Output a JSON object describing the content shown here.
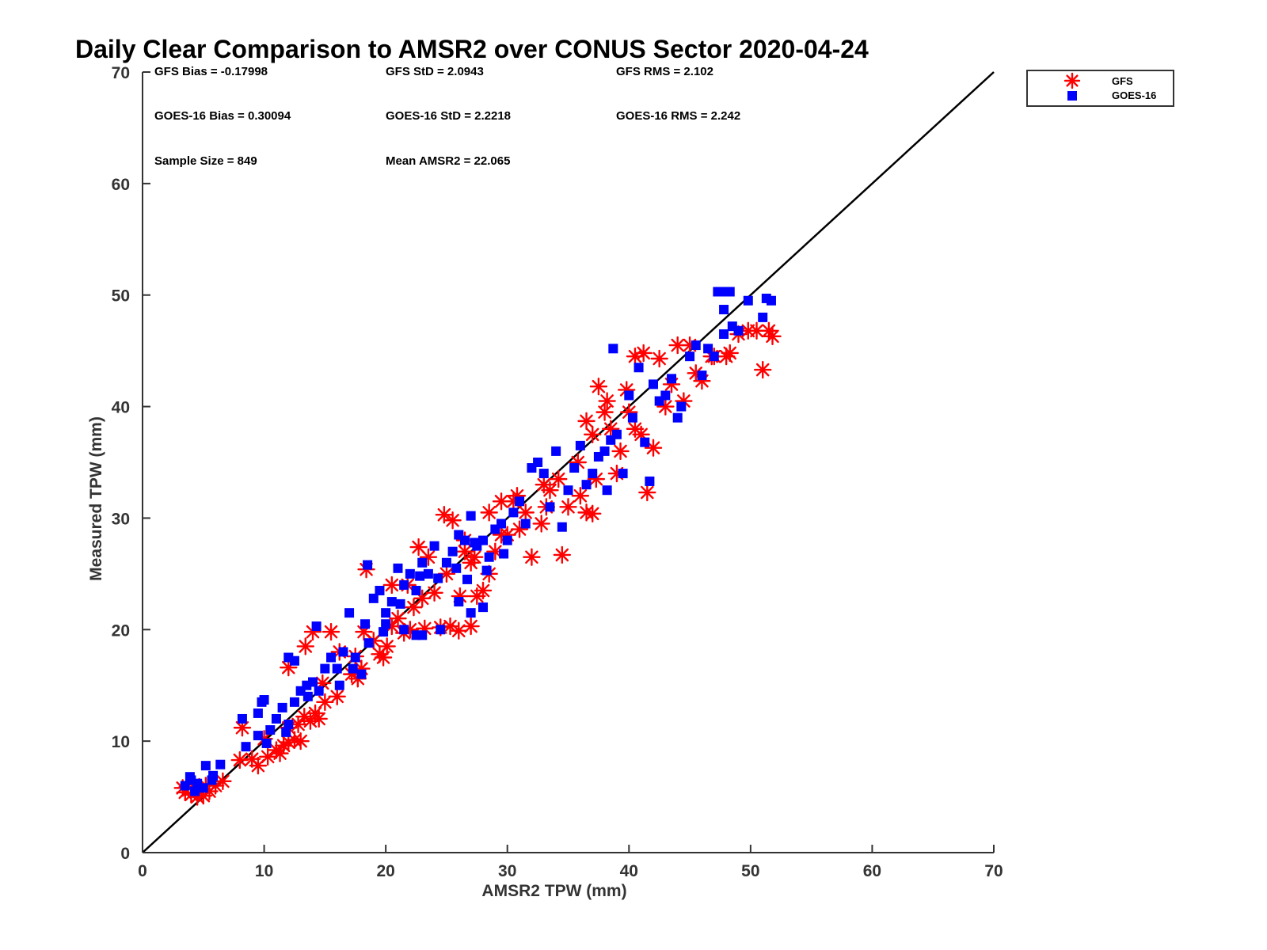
{
  "chart_data": {
    "type": "scatter",
    "title": "Daily Clear Comparison to AMSR2 over CONUS Sector 2020-04-24",
    "xlabel": "AMSR2 TPW (mm)",
    "ylabel": "Measured TPW (mm)",
    "xlim": [
      0,
      70
    ],
    "ylim": [
      0,
      70
    ],
    "xticks": [
      "0",
      "10",
      "20",
      "30",
      "40",
      "50",
      "60",
      "70"
    ],
    "yticks": [
      "0",
      "10",
      "20",
      "30",
      "40",
      "50",
      "60",
      "70"
    ],
    "reference_line": "1:1",
    "grid": false,
    "legend_position": "outside-top-right",
    "stats": [
      [
        "GFS Bias = -0.17998",
        "GFS StD = 2.0943",
        "GFS RMS = 2.102"
      ],
      [
        "GOES-16 Bias = 0.30094",
        "GOES-16 StD = 2.2218",
        "GOES-16 RMS = 2.242"
      ],
      [
        "Sample Size = 849",
        "Mean AMSR2 = 22.065"
      ]
    ],
    "series": [
      {
        "name": "GFS",
        "marker": "asterisk",
        "color": "#ff0000",
        "points": [
          [
            3.5,
            5.4
          ],
          [
            4.0,
            5.2
          ],
          [
            4.5,
            5.0
          ],
          [
            5.0,
            5.1
          ],
          [
            5.5,
            5.5
          ],
          [
            6.0,
            6.0
          ],
          [
            6.6,
            6.4
          ],
          [
            4.2,
            6.1
          ],
          [
            3.3,
            5.8
          ],
          [
            5.2,
            6.0
          ],
          [
            8.0,
            8.3
          ],
          [
            8.2,
            11.2
          ],
          [
            9.5,
            7.8
          ],
          [
            10.3,
            8.6
          ],
          [
            11.0,
            9.2
          ],
          [
            11.6,
            9.6
          ],
          [
            12.0,
            9.9
          ],
          [
            12.5,
            10.1
          ],
          [
            13.0,
            10.0
          ],
          [
            11.3,
            8.9
          ],
          [
            12.0,
            16.6
          ],
          [
            13.4,
            18.5
          ],
          [
            14.0,
            19.8
          ],
          [
            13.3,
            12.2
          ],
          [
            14.2,
            12.5
          ],
          [
            14.5,
            12.0
          ],
          [
            12.8,
            11.5
          ],
          [
            12.0,
            11.2
          ],
          [
            13.8,
            11.8
          ],
          [
            15.5,
            19.8
          ],
          [
            16.2,
            18.0
          ],
          [
            17.5,
            17.6
          ],
          [
            18.0,
            16.5
          ],
          [
            18.2,
            19.8
          ],
          [
            19.0,
            19.0
          ],
          [
            17.7,
            15.6
          ],
          [
            19.5,
            17.8
          ],
          [
            20.1,
            18.5
          ],
          [
            18.4,
            25.4
          ],
          [
            20.5,
            20.3
          ],
          [
            21.5,
            19.7
          ],
          [
            22.0,
            20.0
          ],
          [
            23.2,
            20.1
          ],
          [
            24.0,
            23.3
          ],
          [
            24.5,
            20.2
          ],
          [
            25.3,
            20.3
          ],
          [
            26.0,
            19.9
          ],
          [
            27.0,
            20.3
          ],
          [
            22.7,
            27.4
          ],
          [
            23.5,
            26.5
          ],
          [
            24.8,
            30.3
          ],
          [
            25.5,
            29.8
          ],
          [
            26.5,
            28.0
          ],
          [
            27.3,
            26.5
          ],
          [
            27.5,
            23.0
          ],
          [
            28.0,
            23.5
          ],
          [
            26.1,
            23.0
          ],
          [
            21.8,
            24.0
          ],
          [
            23.0,
            22.8
          ],
          [
            28.5,
            25.0
          ],
          [
            29.0,
            27.0
          ],
          [
            30.0,
            28.5
          ],
          [
            31.5,
            30.5
          ],
          [
            32.0,
            26.5
          ],
          [
            32.8,
            29.5
          ],
          [
            33.2,
            31.0
          ],
          [
            34.5,
            26.7
          ],
          [
            29.5,
            31.5
          ],
          [
            30.8,
            32.0
          ],
          [
            33.5,
            32.5
          ],
          [
            34.2,
            33.5
          ],
          [
            35.0,
            31.0
          ],
          [
            36.0,
            32.0
          ],
          [
            36.5,
            30.5
          ],
          [
            37.0,
            30.4
          ],
          [
            37.3,
            33.5
          ],
          [
            37.0,
            37.5
          ],
          [
            36.5,
            38.7
          ],
          [
            35.8,
            35.0
          ],
          [
            37.5,
            41.8
          ],
          [
            38.2,
            40.5
          ],
          [
            38.5,
            38.0
          ],
          [
            39.0,
            34.0
          ],
          [
            39.3,
            36.0
          ],
          [
            40.0,
            39.5
          ],
          [
            40.5,
            38.0
          ],
          [
            41.0,
            37.5
          ],
          [
            41.5,
            32.3
          ],
          [
            42.0,
            36.3
          ],
          [
            40.5,
            44.5
          ],
          [
            41.2,
            44.8
          ],
          [
            42.5,
            44.3
          ],
          [
            43.0,
            40.0
          ],
          [
            43.5,
            42.0
          ],
          [
            44.5,
            40.5
          ],
          [
            44.0,
            45.5
          ],
          [
            45.0,
            45.5
          ],
          [
            45.5,
            43.0
          ],
          [
            46.0,
            42.3
          ],
          [
            47.0,
            44.5
          ],
          [
            48.0,
            44.5
          ],
          [
            48.3,
            44.8
          ],
          [
            49.8,
            46.8
          ],
          [
            50.5,
            46.8
          ],
          [
            51.0,
            43.3
          ],
          [
            51.5,
            46.8
          ],
          [
            51.8,
            46.3
          ],
          [
            46.8,
            44.5
          ],
          [
            49.0,
            46.5
          ],
          [
            16.0,
            14.0
          ],
          [
            17.2,
            16.0
          ],
          [
            19.8,
            17.5
          ],
          [
            21.0,
            21.0
          ],
          [
            22.3,
            22.0
          ],
          [
            25.0,
            25.0
          ],
          [
            27.0,
            26.0
          ],
          [
            29.5,
            28.5
          ],
          [
            31.0,
            29.0
          ],
          [
            33.0,
            33.0
          ],
          [
            14.8,
            15.2
          ],
          [
            15.0,
            13.5
          ],
          [
            9.0,
            8.4
          ],
          [
            10.0,
            10.2
          ],
          [
            20.5,
            24.0
          ],
          [
            26.5,
            27.0
          ],
          [
            28.5,
            30.5
          ],
          [
            30.5,
            31.5
          ],
          [
            38.0,
            39.5
          ],
          [
            39.8,
            41.5
          ]
        ]
      },
      {
        "name": "GOES-16",
        "marker": "square",
        "color": "#0000ff",
        "points": [
          [
            3.5,
            6.0
          ],
          [
            4.0,
            6.5
          ],
          [
            4.5,
            6.2
          ],
          [
            5.0,
            5.8
          ],
          [
            5.2,
            7.8
          ],
          [
            5.7,
            6.5
          ],
          [
            6.4,
            7.9
          ],
          [
            4.3,
            5.5
          ],
          [
            3.9,
            6.8
          ],
          [
            5.8,
            6.9
          ],
          [
            8.2,
            12.0
          ],
          [
            8.5,
            9.5
          ],
          [
            9.5,
            12.5
          ],
          [
            9.8,
            13.5
          ],
          [
            10.0,
            13.7
          ],
          [
            10.5,
            11.0
          ],
          [
            11.0,
            12.0
          ],
          [
            11.5,
            13.0
          ],
          [
            12.0,
            11.5
          ],
          [
            12.5,
            13.5
          ],
          [
            9.5,
            10.5
          ],
          [
            10.2,
            9.8
          ],
          [
            11.8,
            10.8
          ],
          [
            13.0,
            14.5
          ],
          [
            13.5,
            15.0
          ],
          [
            14.0,
            15.3
          ],
          [
            14.5,
            14.5
          ],
          [
            13.6,
            14.0
          ],
          [
            12.0,
            17.5
          ],
          [
            12.5,
            17.2
          ],
          [
            14.3,
            20.3
          ],
          [
            15.5,
            17.5
          ],
          [
            16.0,
            16.5
          ],
          [
            16.5,
            18.0
          ],
          [
            17.0,
            21.5
          ],
          [
            17.3,
            16.5
          ],
          [
            18.0,
            16.0
          ],
          [
            18.3,
            20.5
          ],
          [
            18.5,
            25.8
          ],
          [
            19.0,
            22.8
          ],
          [
            19.5,
            23.5
          ],
          [
            20.0,
            21.5
          ],
          [
            20.5,
            22.5
          ],
          [
            21.0,
            25.5
          ],
          [
            21.5,
            24.0
          ],
          [
            22.0,
            25.0
          ],
          [
            22.5,
            23.5
          ],
          [
            23.0,
            26.0
          ],
          [
            23.5,
            25.0
          ],
          [
            24.5,
            20.0
          ],
          [
            24.0,
            27.5
          ],
          [
            25.0,
            26.0
          ],
          [
            25.5,
            27.0
          ],
          [
            26.0,
            28.5
          ],
          [
            26.5,
            28.0
          ],
          [
            27.0,
            30.2
          ],
          [
            27.5,
            27.5
          ],
          [
            28.0,
            28.0
          ],
          [
            28.5,
            26.5
          ],
          [
            29.0,
            29.0
          ],
          [
            29.5,
            29.5
          ],
          [
            30.0,
            28.0
          ],
          [
            30.5,
            30.5
          ],
          [
            31.0,
            31.5
          ],
          [
            31.5,
            29.5
          ],
          [
            32.0,
            34.5
          ],
          [
            32.5,
            35.0
          ],
          [
            33.0,
            34.0
          ],
          [
            33.5,
            31.0
          ],
          [
            34.0,
            36.0
          ],
          [
            34.5,
            29.2
          ],
          [
            35.0,
            32.5
          ],
          [
            35.5,
            34.5
          ],
          [
            36.0,
            36.5
          ],
          [
            36.5,
            33.0
          ],
          [
            37.0,
            34.0
          ],
          [
            37.5,
            35.5
          ],
          [
            38.0,
            36.0
          ],
          [
            38.2,
            32.5
          ],
          [
            38.5,
            37.0
          ],
          [
            38.7,
            45.2
          ],
          [
            39.0,
            37.5
          ],
          [
            39.5,
            34.0
          ],
          [
            40.0,
            41.0
          ],
          [
            40.3,
            39.0
          ],
          [
            40.8,
            43.5
          ],
          [
            41.3,
            36.8
          ],
          [
            41.7,
            33.3
          ],
          [
            42.0,
            42.0
          ],
          [
            42.5,
            40.5
          ],
          [
            43.0,
            41.0
          ],
          [
            43.5,
            42.5
          ],
          [
            44.0,
            39.0
          ],
          [
            44.3,
            40.0
          ],
          [
            45.0,
            44.5
          ],
          [
            45.5,
            45.5
          ],
          [
            46.0,
            42.8
          ],
          [
            46.5,
            45.2
          ],
          [
            47.0,
            44.5
          ],
          [
            47.3,
            50.3
          ],
          [
            47.8,
            48.7
          ],
          [
            48.0,
            50.3
          ],
          [
            48.3,
            50.3
          ],
          [
            48.5,
            47.2
          ],
          [
            49.0,
            46.8
          ],
          [
            49.8,
            49.5
          ],
          [
            51.0,
            48.0
          ],
          [
            51.3,
            49.7
          ],
          [
            51.7,
            49.5
          ],
          [
            47.8,
            46.5
          ],
          [
            20.0,
            20.5
          ],
          [
            21.5,
            20.0
          ],
          [
            22.5,
            19.5
          ],
          [
            23.0,
            19.5
          ],
          [
            26.0,
            22.5
          ],
          [
            27.0,
            21.5
          ],
          [
            28.0,
            22.0
          ],
          [
            28.3,
            25.3
          ],
          [
            29.7,
            26.8
          ],
          [
            26.7,
            24.5
          ],
          [
            15.0,
            16.5
          ],
          [
            16.2,
            15.0
          ],
          [
            17.5,
            17.5
          ],
          [
            18.6,
            18.8
          ],
          [
            19.8,
            19.8
          ],
          [
            21.2,
            22.3
          ],
          [
            22.8,
            24.8
          ],
          [
            24.3,
            24.6
          ],
          [
            25.8,
            25.5
          ],
          [
            27.3,
            27.8
          ]
        ]
      }
    ]
  }
}
